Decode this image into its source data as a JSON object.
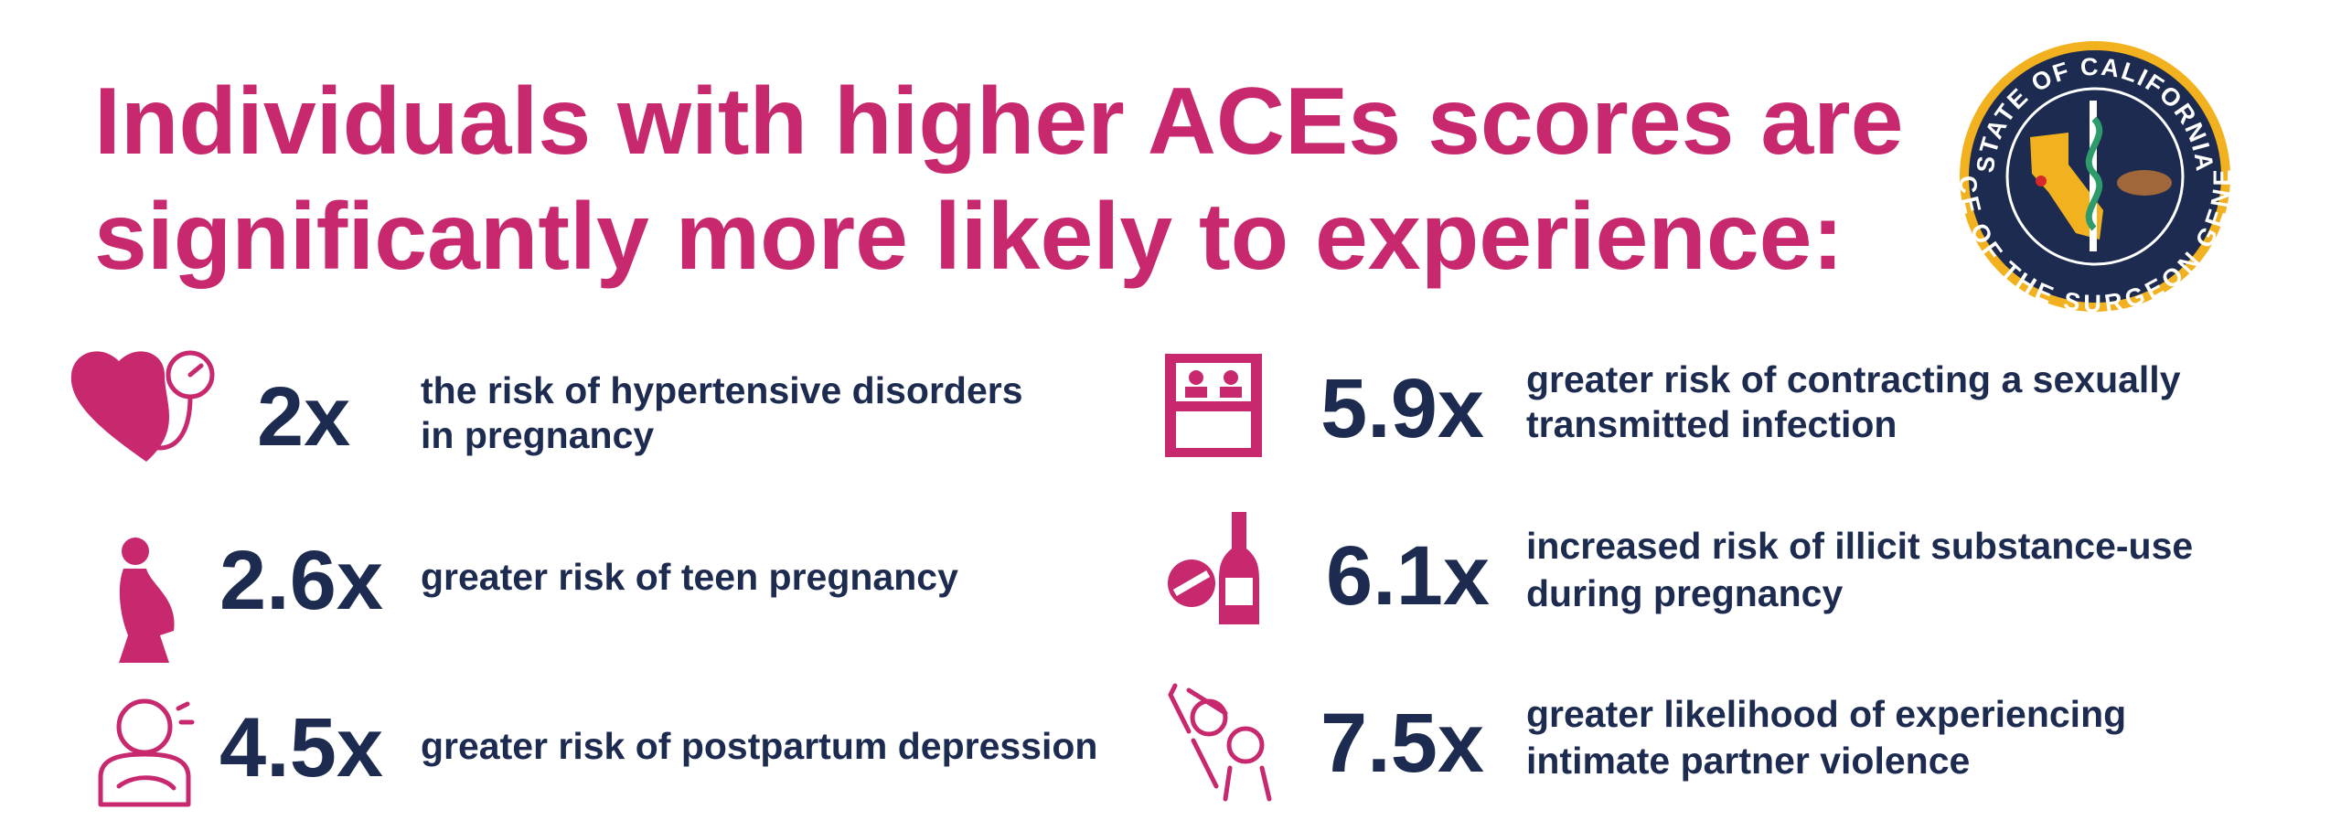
{
  "title_lines": [
    "Individuals with higher ACEs scores are",
    "significantly more likely to experience:"
  ],
  "seal": {
    "top_text": "STATE OF CALIFORNIA",
    "bottom_text": "OFFICE OF THE SURGEON GENERAL"
  },
  "stats": [
    {
      "value": "2x",
      "description_lines": [
        "the risk of hypertensive disorders",
        "in pregnancy"
      ]
    },
    {
      "value": "2.6x",
      "description_lines": [
        "greater risk of teen pregnancy"
      ]
    },
    {
      "value": "4.5x",
      "description_lines": [
        "greater risk of postpartum depression"
      ]
    },
    {
      "value": "5.9x",
      "description_lines": [
        "greater risk of contracting a sexually",
        "transmitted infection"
      ]
    },
    {
      "value": "6.1x",
      "description_lines": [
        "increased risk of illicit substance-use",
        "during pregnancy"
      ]
    },
    {
      "value": "7.5x",
      "description_lines": [
        "greater likelihood of experiencing",
        "intimate partner violence"
      ]
    }
  ]
}
